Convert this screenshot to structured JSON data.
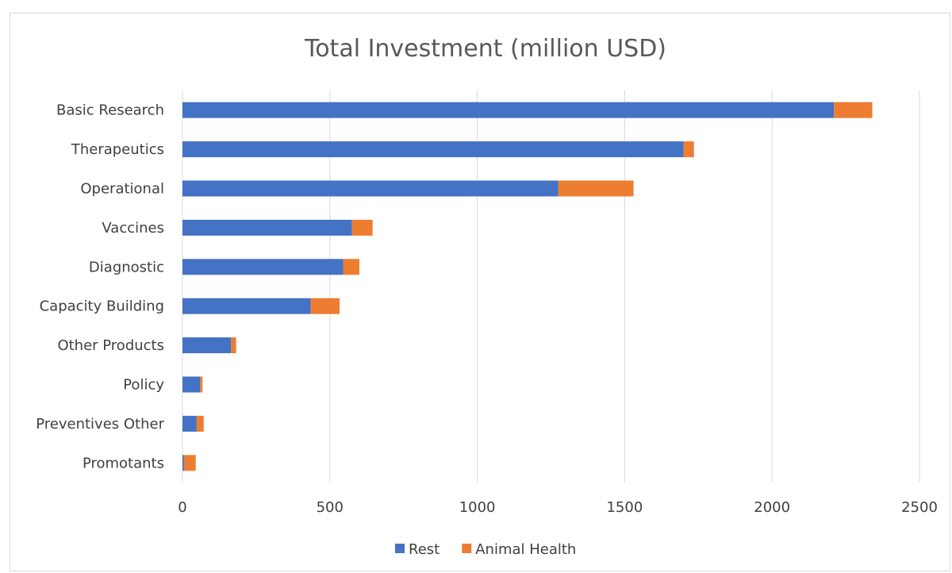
{
  "chart_data": {
    "type": "bar",
    "orientation": "horizontal",
    "stacked": true,
    "title": "Total Investment (million USD)",
    "categories": [
      "Basic Research",
      "Therapeutics",
      "Operational",
      "Vaccines",
      "Diagnostic",
      "Capacity Building",
      "Other Products",
      "Policy",
      "Preventives Other",
      "Promotants"
    ],
    "series": [
      {
        "name": "Rest",
        "values": [
          2210,
          1700,
          1275,
          575,
          545,
          435,
          165,
          60,
          48,
          5
        ]
      },
      {
        "name": "Animal Health",
        "values": [
          130,
          35,
          255,
          70,
          55,
          98,
          17,
          8,
          24,
          40
        ]
      }
    ],
    "xlim": [
      0,
      2500
    ],
    "xticks": [
      "0",
      "500",
      "1000",
      "1500",
      "2000",
      "2500"
    ],
    "grid": true,
    "legend_position": "bottom",
    "colors": {
      "Rest": "#4472c4",
      "Animal Health": "#ed7d31",
      "grid": "#d9d9d9"
    }
  }
}
